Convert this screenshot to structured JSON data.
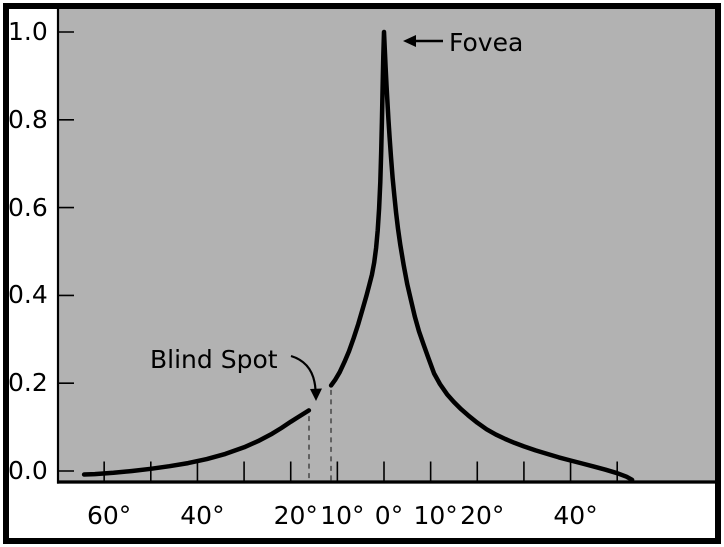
{
  "figure": {
    "kind": "visual acuity vs eccentricity figure",
    "annotations": {
      "fovea": "Fovea",
      "blind_spot": "Blind Spot"
    }
  },
  "chart_data": {
    "type": "line",
    "title": "",
    "xlabel": "",
    "ylabel": "",
    "xlim": [
      -70,
      70
    ],
    "ylim": [
      -0.03,
      1.06
    ],
    "grid": false,
    "x_tick_degs": [
      -60,
      -50,
      -40,
      -30,
      -20,
      -10,
      0,
      10,
      20,
      30,
      40,
      50
    ],
    "x_labels": [
      {
        "deg": -60,
        "text": "60°"
      },
      {
        "deg": -40,
        "text": "40°"
      },
      {
        "deg": -20,
        "text": "20°"
      },
      {
        "deg": -10,
        "text": "10°"
      },
      {
        "deg": 0,
        "text": "0°"
      },
      {
        "deg": 10,
        "text": "10°"
      },
      {
        "deg": 20,
        "text": "20°"
      },
      {
        "deg": 40,
        "text": "40°"
      }
    ],
    "y_ticks": [
      {
        "v": 0.0,
        "label": "0.0"
      },
      {
        "v": 0.2,
        "label": "0.2"
      },
      {
        "v": 0.4,
        "label": "0.4"
      },
      {
        "v": 0.6,
        "label": "0.6"
      },
      {
        "v": 0.8,
        "label": "0.8"
      },
      {
        "v": 1.0,
        "label": "1.0"
      }
    ],
    "blind_spot": {
      "gap_deg": [
        -16.1,
        -11.35
      ],
      "dashed_lines": [
        {
          "deg": -16.08,
          "top_v": 0.134
        },
        {
          "deg": -11.36,
          "top_v": 0.194
        }
      ]
    },
    "peak": {
      "deg": 0,
      "v": 1.0,
      "label": "Fovea"
    },
    "series": [
      {
        "name": "acuity-left-of-blind-spot",
        "points": [
          [
            -64.3,
            -0.008
          ],
          [
            -62,
            -0.007
          ],
          [
            -58,
            -0.004
          ],
          [
            -54,
            0.0
          ],
          [
            -50,
            0.005
          ],
          [
            -46,
            0.011
          ],
          [
            -42,
            0.018
          ],
          [
            -38,
            0.027
          ],
          [
            -34,
            0.039
          ],
          [
            -30,
            0.054
          ],
          [
            -27,
            0.068
          ],
          [
            -24,
            0.085
          ],
          [
            -22,
            0.098
          ],
          [
            -20,
            0.112
          ],
          [
            -18.5,
            0.122
          ],
          [
            -17.3,
            0.13
          ],
          [
            -16.1,
            0.138
          ]
        ]
      },
      {
        "name": "acuity-main",
        "points": [
          [
            -11.35,
            0.195
          ],
          [
            -10.5,
            0.207
          ],
          [
            -9.5,
            0.225
          ],
          [
            -8.5,
            0.248
          ],
          [
            -7.5,
            0.273
          ],
          [
            -6.5,
            0.303
          ],
          [
            -5.5,
            0.335
          ],
          [
            -4.5,
            0.372
          ],
          [
            -3.8,
            0.398
          ],
          [
            -3.2,
            0.422
          ],
          [
            -2.6,
            0.447
          ],
          [
            -2.1,
            0.475
          ],
          [
            -1.7,
            0.508
          ],
          [
            -1.35,
            0.548
          ],
          [
            -1.05,
            0.598
          ],
          [
            -0.8,
            0.658
          ],
          [
            -0.6,
            0.728
          ],
          [
            -0.45,
            0.795
          ],
          [
            -0.3,
            0.872
          ],
          [
            -0.15,
            0.945
          ],
          [
            0,
            1.0
          ],
          [
            0.15,
            0.965
          ],
          [
            0.35,
            0.92
          ],
          [
            0.55,
            0.875
          ],
          [
            0.75,
            0.838
          ],
          [
            0.95,
            0.802
          ],
          [
            1.2,
            0.76
          ],
          [
            1.5,
            0.715
          ],
          [
            1.85,
            0.668
          ],
          [
            2.2,
            0.628
          ],
          [
            2.6,
            0.588
          ],
          [
            3.0,
            0.552
          ],
          [
            3.5,
            0.515
          ],
          [
            4.2,
            0.47
          ],
          [
            5.0,
            0.425
          ],
          [
            5.8,
            0.388
          ],
          [
            6.6,
            0.352
          ],
          [
            7.5,
            0.318
          ],
          [
            8.5,
            0.288
          ],
          [
            9.5,
            0.258
          ],
          [
            10.75,
            0.222
          ],
          [
            12,
            0.198
          ],
          [
            13.5,
            0.175
          ],
          [
            15,
            0.157
          ],
          [
            16.5,
            0.141
          ],
          [
            18,
            0.127
          ],
          [
            20,
            0.11
          ],
          [
            22,
            0.095
          ],
          [
            24,
            0.083
          ],
          [
            26,
            0.073
          ],
          [
            28,
            0.064
          ],
          [
            30,
            0.056
          ],
          [
            32.5,
            0.047
          ],
          [
            35,
            0.039
          ],
          [
            37.5,
            0.031
          ],
          [
            40,
            0.024
          ],
          [
            42.5,
            0.017
          ],
          [
            45,
            0.01
          ],
          [
            47.5,
            0.003
          ],
          [
            50,
            -0.005
          ],
          [
            52,
            -0.013
          ],
          [
            53.2,
            -0.02
          ]
        ]
      }
    ],
    "colors": {
      "plot_bg": "#b2b2b2",
      "curve": "#000000",
      "axis": "#000000",
      "dashed": "#606060",
      "frame": "#000000",
      "outer_bg": "#ffffff",
      "text": "#000000"
    },
    "legend": null
  }
}
